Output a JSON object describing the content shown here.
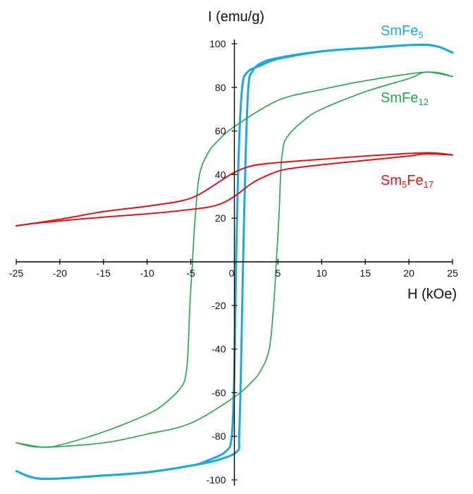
{
  "chart_data": {
    "type": "line",
    "title": "",
    "xlabel": "H (kOe)",
    "ylabel": "I (emu/g)",
    "xlim": [
      -25,
      25
    ],
    "ylim": [
      -100,
      100
    ],
    "x_ticks": [
      -25,
      -20,
      -15,
      -10,
      -5,
      0,
      5,
      10,
      15,
      20,
      25
    ],
    "x_tick_labels": [
      "-25",
      "-20",
      "-15",
      "-10",
      "-5",
      "0",
      "5",
      "10",
      "15",
      "20",
      "25"
    ],
    "y_ticks": [
      100,
      80,
      60,
      40,
      20,
      -20,
      -40,
      -60,
      -80,
      -100
    ],
    "y_tick_labels": [
      "100",
      "80",
      "60",
      "40",
      "20",
      "-20",
      "-40",
      "-60",
      "-80",
      "-100"
    ],
    "grid": false,
    "series": [
      {
        "name_main": "SmFe",
        "name_sub": "5",
        "color": "#1ea8e0",
        "descending": [
          [
            25,
            96
          ],
          [
            22,
            99.5
          ],
          [
            15,
            98
          ],
          [
            10,
            96.5
          ],
          [
            5,
            93.5
          ],
          [
            3,
            91
          ],
          [
            2,
            87
          ],
          [
            1.6,
            80
          ],
          [
            1.3,
            50
          ],
          [
            1.0,
            0
          ],
          [
            0.75,
            -50
          ],
          [
            0.55,
            -80
          ],
          [
            0.3,
            -87
          ],
          [
            -2,
            -91
          ],
          [
            -5,
            -93.5
          ],
          [
            -10,
            -96.5
          ],
          [
            -15,
            -98
          ],
          [
            -22,
            -99.5
          ],
          [
            -25,
            -96
          ]
        ],
        "ascending": [
          [
            -25,
            -96
          ],
          [
            -22,
            -99.5
          ],
          [
            -15,
            -98
          ],
          [
            -10,
            -96.5
          ],
          [
            -5,
            -93.5
          ],
          [
            -3,
            -91
          ],
          [
            -1,
            -87
          ],
          [
            -0.3,
            -80
          ],
          [
            0,
            -50
          ],
          [
            0.2,
            0
          ],
          [
            0.5,
            50
          ],
          [
            0.9,
            80
          ],
          [
            1.5,
            87
          ],
          [
            3,
            90
          ],
          [
            5,
            93
          ],
          [
            10,
            96.5
          ],
          [
            15,
            98
          ],
          [
            22,
            99.5
          ],
          [
            25,
            96
          ]
        ]
      },
      {
        "name_main": "SmFe",
        "name_sub": "12",
        "color": "#22a640",
        "descending": [
          [
            25,
            85
          ],
          [
            22,
            87
          ],
          [
            15,
            83
          ],
          [
            10,
            79
          ],
          [
            5,
            74
          ],
          [
            0,
            62
          ],
          [
            -2,
            55
          ],
          [
            -3,
            50
          ],
          [
            -4,
            40
          ],
          [
            -4.5,
            20
          ],
          [
            -4.8,
            0
          ],
          [
            -5.1,
            -20
          ],
          [
            -5.3,
            -40
          ],
          [
            -5.5,
            -50
          ],
          [
            -6,
            -57
          ],
          [
            -8,
            -65
          ],
          [
            -10,
            -70
          ],
          [
            -15,
            -78
          ],
          [
            -20,
            -84
          ],
          [
            -22,
            -85
          ],
          [
            -25,
            -83
          ]
        ],
        "ascending": [
          [
            -25,
            -83
          ],
          [
            -22,
            -85
          ],
          [
            -15,
            -83
          ],
          [
            -10,
            -79
          ],
          [
            -5,
            -74
          ],
          [
            0,
            -62
          ],
          [
            2,
            -55
          ],
          [
            3,
            -50
          ],
          [
            4,
            -40
          ],
          [
            4.5,
            -20
          ],
          [
            4.8,
            0
          ],
          [
            5.1,
            20
          ],
          [
            5.3,
            40
          ],
          [
            5.5,
            50
          ],
          [
            6,
            57
          ],
          [
            8,
            65
          ],
          [
            10,
            70
          ],
          [
            15,
            78
          ],
          [
            20,
            84
          ],
          [
            22,
            87
          ],
          [
            25,
            85
          ]
        ]
      },
      {
        "name_main": "Sm",
        "name_mid": "5",
        "name_end": "Fe",
        "name_sub": "17",
        "color": "#e01414",
        "descending": [
          [
            25,
            49
          ],
          [
            22,
            50
          ],
          [
            15,
            48.5
          ],
          [
            10,
            47
          ],
          [
            5,
            45.5
          ],
          [
            2,
            44
          ],
          [
            0,
            41
          ],
          [
            -2,
            36
          ],
          [
            -4,
            31
          ],
          [
            -6,
            28
          ],
          [
            -10,
            25.5
          ],
          [
            -15,
            23
          ],
          [
            -20,
            19.5
          ],
          [
            -25,
            16.5
          ]
        ],
        "ascending": [
          [
            -25,
            16.5
          ],
          [
            -22,
            18
          ],
          [
            -15,
            20.5
          ],
          [
            -10,
            22
          ],
          [
            -5,
            24
          ],
          [
            -2,
            26
          ],
          [
            0,
            30
          ],
          [
            2,
            36
          ],
          [
            4,
            40
          ],
          [
            6,
            42.5
          ],
          [
            10,
            44.5
          ],
          [
            15,
            46.5
          ],
          [
            20,
            48.5
          ],
          [
            22,
            49.5
          ],
          [
            25,
            49
          ]
        ]
      }
    ]
  }
}
